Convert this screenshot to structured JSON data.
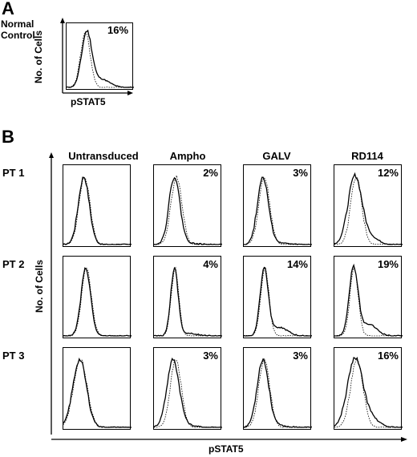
{
  "panel_a": {
    "letter": "A",
    "row_label_line1": "Normal",
    "row_label_line2": "Control",
    "ylabel": "No. of Cells",
    "xlabel": "pSTAT5",
    "percent": "16%"
  },
  "panel_b": {
    "letter": "B",
    "ylabel": "No. of Cells",
    "xlabel": "pSTAT5",
    "columns": [
      "Untransduced",
      "Ampho",
      "GALV",
      "RD114"
    ],
    "rows": [
      "PT 1",
      "PT 2",
      "PT 3"
    ],
    "percents": [
      [
        "",
        "2%",
        "3%",
        "12%"
      ],
      [
        "",
        "4%",
        "14%",
        "19%"
      ],
      [
        "",
        "3%",
        "3%",
        "16%"
      ]
    ]
  },
  "chart_data": [
    {
      "type": "line",
      "panel": "A",
      "row": "Normal Control",
      "xlabel": "pSTAT5",
      "ylabel": "No. of Cells",
      "series": [
        {
          "style": "dotted",
          "peak": 0.28,
          "width": 0.07,
          "tail": 0.0
        },
        {
          "style": "solid",
          "peak": 0.3,
          "width": 0.075,
          "tail": 0.16
        }
      ],
      "annotation": "16%"
    },
    {
      "type": "line",
      "panel": "B",
      "xlabel": "pSTAT5",
      "ylabel": "No. of Cells",
      "columns": [
        "Untransduced",
        "Ampho",
        "GALV",
        "RD114"
      ],
      "rows": [
        "PT 1",
        "PT 2",
        "PT 3"
      ],
      "grid": [
        [
          {
            "annotation": "",
            "solid": {
              "peak": 0.3,
              "width": 0.08,
              "tail": 0.0
            },
            "dotted": {
              "peak": 0.31,
              "width": 0.08
            }
          },
          {
            "annotation": "2%",
            "solid": {
              "peak": 0.3,
              "width": 0.08,
              "tail": 0.02
            },
            "dotted": {
              "peak": 0.33,
              "width": 0.08
            }
          },
          {
            "annotation": "3%",
            "solid": {
              "peak": 0.28,
              "width": 0.08,
              "tail": 0.03
            },
            "dotted": {
              "peak": 0.3,
              "width": 0.08
            }
          },
          {
            "annotation": "12%",
            "solid": {
              "peak": 0.3,
              "width": 0.1,
              "tail": 0.12
            },
            "dotted": {
              "peak": 0.32,
              "width": 0.08
            }
          }
        ],
        [
          {
            "annotation": "",
            "solid": {
              "peak": 0.33,
              "width": 0.07,
              "tail": 0.0
            },
            "dotted": {
              "peak": 0.34,
              "width": 0.07
            }
          },
          {
            "annotation": "4%",
            "solid": {
              "peak": 0.3,
              "width": 0.055,
              "tail": 0.04
            },
            "dotted": {
              "peak": 0.31,
              "width": 0.055
            }
          },
          {
            "annotation": "14%",
            "solid": {
              "peak": 0.3,
              "width": 0.06,
              "tail": 0.14
            },
            "dotted": {
              "peak": 0.31,
              "width": 0.06
            }
          },
          {
            "annotation": "19%",
            "solid": {
              "peak": 0.28,
              "width": 0.065,
              "tail": 0.19
            },
            "dotted": {
              "peak": 0.29,
              "width": 0.06
            }
          }
        ],
        [
          {
            "annotation": "",
            "solid": {
              "peak": 0.24,
              "width": 0.1,
              "tail": 0.0
            },
            "dotted": {
              "peak": 0.25,
              "width": 0.1
            }
          },
          {
            "annotation": "3%",
            "solid": {
              "peak": 0.28,
              "width": 0.09,
              "tail": 0.03
            },
            "dotted": {
              "peak": 0.32,
              "width": 0.08
            }
          },
          {
            "annotation": "3%",
            "solid": {
              "peak": 0.28,
              "width": 0.085,
              "tail": 0.03
            },
            "dotted": {
              "peak": 0.3,
              "width": 0.08
            }
          },
          {
            "annotation": "16%",
            "solid": {
              "peak": 0.3,
              "width": 0.11,
              "tail": 0.16
            },
            "dotted": {
              "peak": 0.33,
              "width": 0.09
            }
          }
        ]
      ]
    }
  ]
}
